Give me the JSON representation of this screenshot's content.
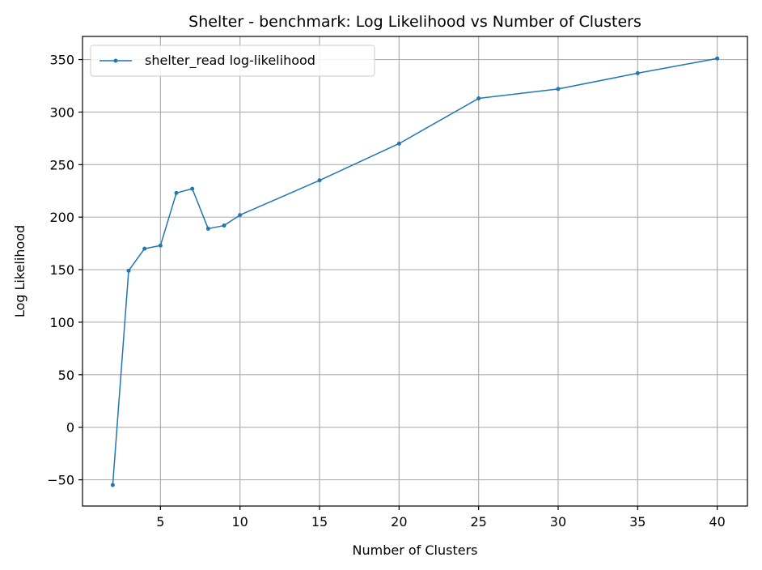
{
  "chart_data": {
    "type": "line",
    "title": "Shelter - benchmark: Log Likelihood vs Number of Clusters",
    "xlabel": "Number of Clusters",
    "ylabel": "Log Likelihood",
    "xlim": [
      0.1,
      41.9
    ],
    "ylim": [
      -75,
      372
    ],
    "xticks": [
      5,
      10,
      15,
      20,
      25,
      30,
      35,
      40
    ],
    "yticks": [
      -50,
      0,
      50,
      100,
      150,
      200,
      250,
      300,
      350
    ],
    "grid": true,
    "legend_position": "top-left",
    "series": [
      {
        "name": "shelter_read log-likelihood",
        "color": "#1f77b4",
        "x": [
          2,
          3,
          4,
          5,
          6,
          7,
          8,
          9,
          10,
          15,
          20,
          25,
          30,
          35,
          40
        ],
        "y": [
          -55,
          149,
          170,
          173,
          223,
          227,
          189,
          192,
          202,
          235,
          270,
          313,
          322,
          337,
          351
        ]
      }
    ]
  }
}
